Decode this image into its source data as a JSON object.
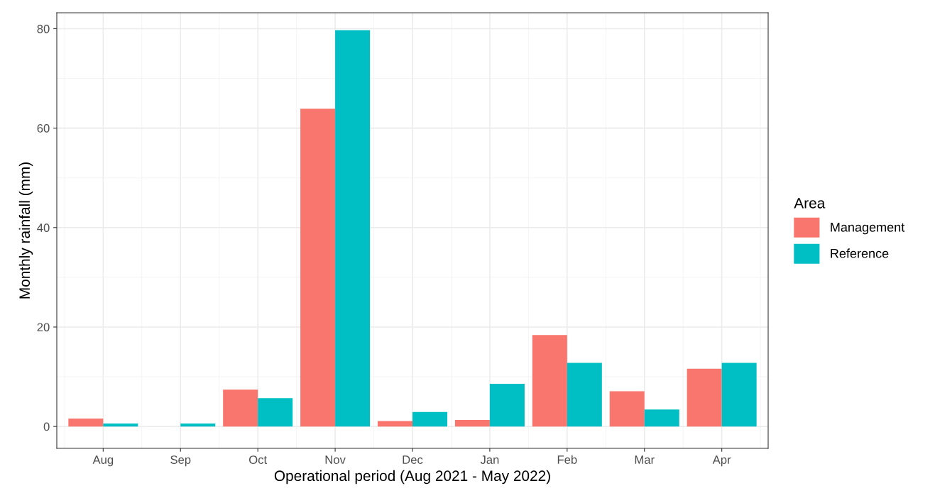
{
  "chart_data": {
    "type": "bar",
    "xlabel": "Operational period (Aug 2021 - May 2022)",
    "ylabel": "Monthly rainfall (mm)",
    "legend_title": "Area",
    "categories": [
      "Aug",
      "Sep",
      "Oct",
      "Nov",
      "Dec",
      "Jan",
      "Feb",
      "Mar",
      "Apr"
    ],
    "series": [
      {
        "name": "Management",
        "color": "#f8766d",
        "values": [
          1.6,
          0,
          7.4,
          63.9,
          1.1,
          1.3,
          18.4,
          7.1,
          11.6
        ]
      },
      {
        "name": "Reference",
        "color": "#00bfc4",
        "values": [
          0.6,
          0.6,
          5.7,
          79.7,
          2.9,
          8.6,
          12.8,
          3.4,
          12.8
        ]
      }
    ],
    "ylim": [
      -4.4,
      83.2
    ],
    "yticks": [
      0,
      20,
      40,
      60,
      80
    ],
    "grid": true,
    "legend": "right"
  }
}
